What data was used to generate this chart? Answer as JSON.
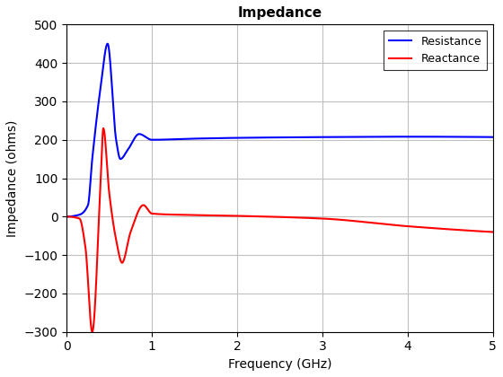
{
  "title": "Impedance",
  "xlabel": "Frequency (GHz)",
  "ylabel": "Impedance (ohms)",
  "xlim": [
    0,
    5
  ],
  "ylim": [
    -300,
    500
  ],
  "yticks": [
    -300,
    -200,
    -100,
    0,
    100,
    200,
    300,
    400,
    500
  ],
  "xticks": [
    0,
    1,
    2,
    3,
    4,
    5
  ],
  "resistance_color": "#0000FF",
  "reactance_color": "#FF0000",
  "line_width": 1.5,
  "background_color": "#FFFFFF",
  "grid_color": "#C0C0C0",
  "legend_labels": [
    "Resistance",
    "Reactance"
  ],
  "legend_loc": "upper right",
  "fig_width": 5.6,
  "fig_height": 4.2,
  "dpi": 100
}
